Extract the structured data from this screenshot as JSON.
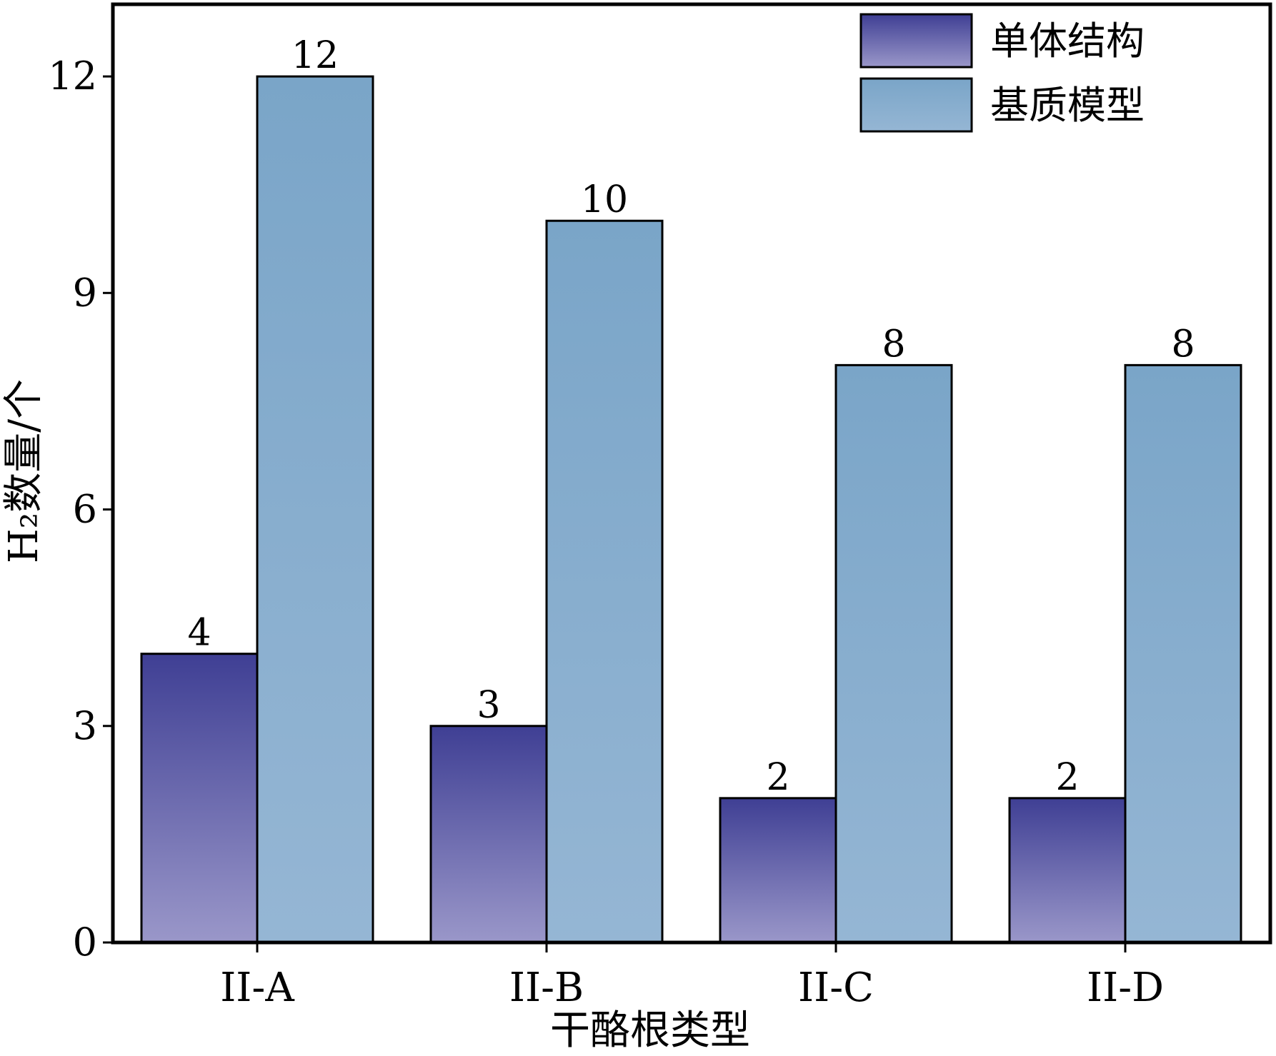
{
  "chart_data": {
    "type": "bar",
    "title": "",
    "xlabel": "干酪根类型",
    "ylabel": "H₂数量/个",
    "categories": [
      "II-A",
      "II-B",
      "II-C",
      "II-D"
    ],
    "series": [
      {
        "name": "单体结构",
        "values": [
          4,
          3,
          2,
          2
        ],
        "color_top": "#3f3f94",
        "color_bottom": "#9a97c9"
      },
      {
        "name": "基质模型",
        "values": [
          12,
          10,
          8,
          8
        ],
        "color_top": "#7aa5c8",
        "color_bottom": "#95b6d4"
      }
    ],
    "ylim": [
      0,
      13
    ],
    "yticks": [
      0,
      3,
      6,
      9,
      12
    ],
    "grid": false,
    "legend_position": "top-right"
  }
}
